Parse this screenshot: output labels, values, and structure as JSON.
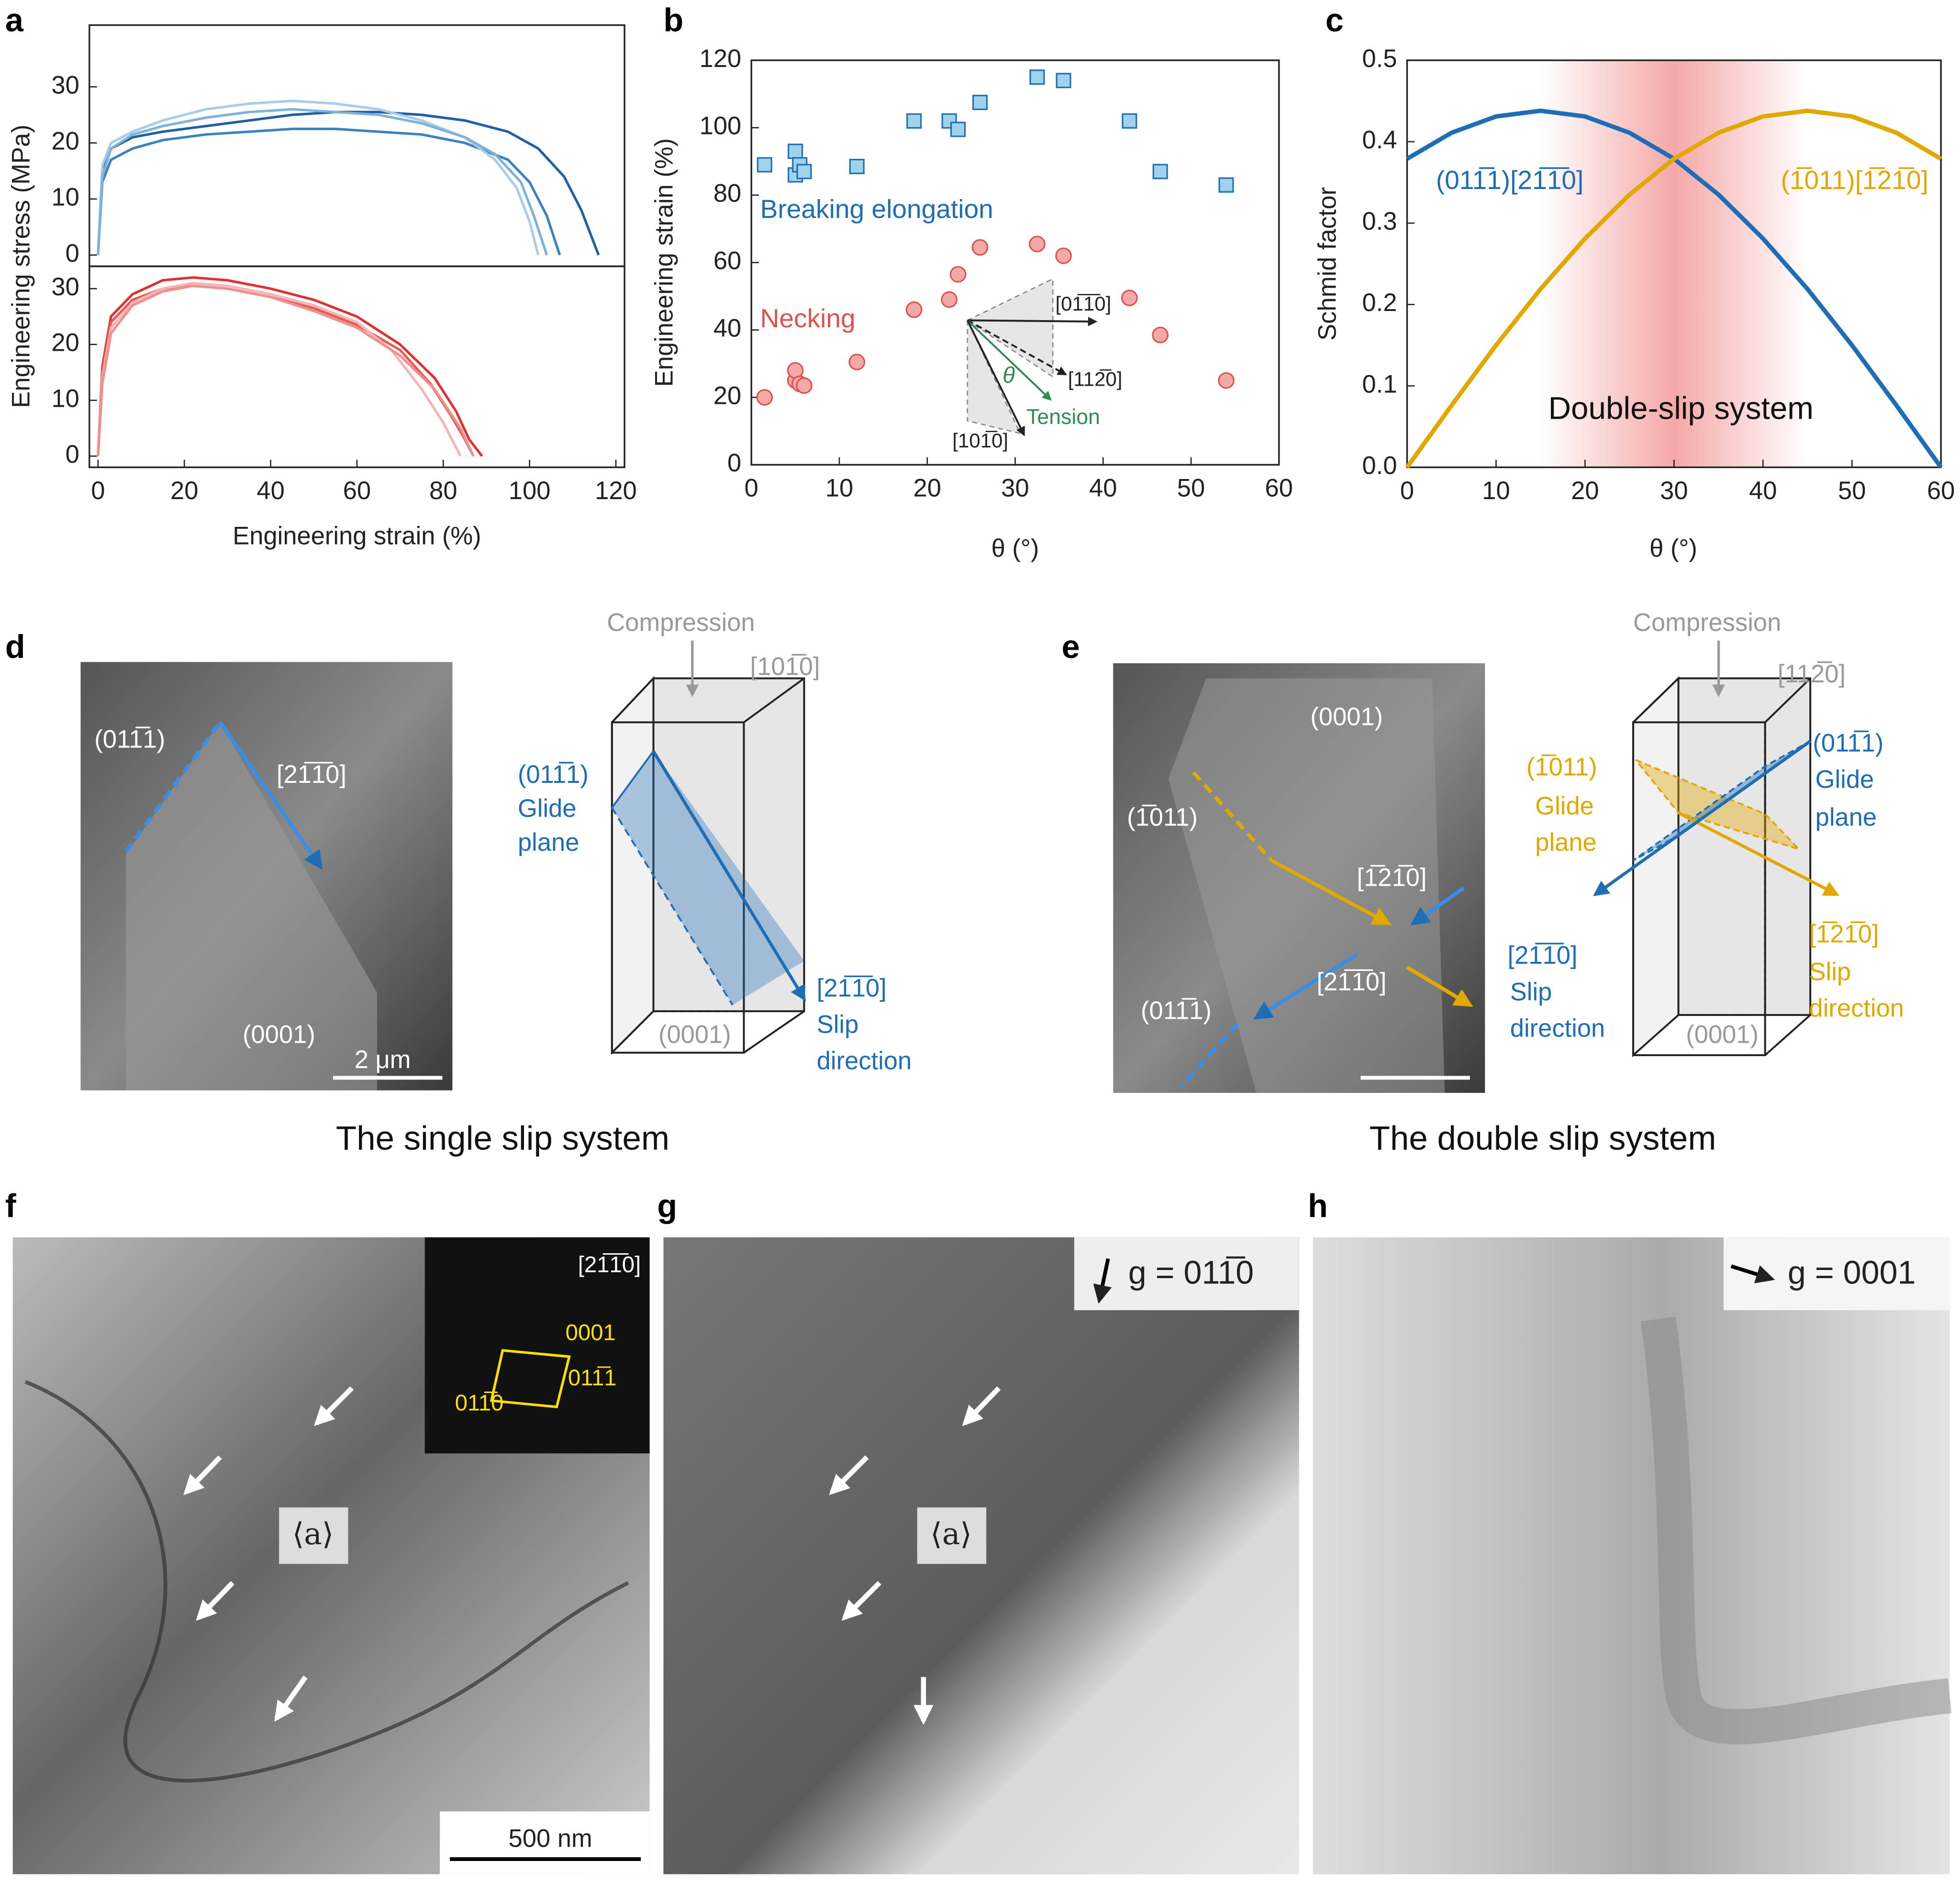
{
  "chart_data": [
    {
      "type": "line",
      "panel": "a",
      "ylabel": "Engineering stress (MPa)",
      "xlim": [
        -2,
        122
      ],
      "ylim": [
        -2,
        41
      ],
      "yticks": [
        0,
        10,
        20,
        30
      ],
      "series": [
        {
          "color": "#1f5fa5",
          "x": [
            0,
            1,
            3,
            8,
            15,
            25,
            35,
            45,
            55,
            65,
            75,
            85,
            95,
            102,
            108,
            112,
            116
          ],
          "values": [
            0,
            15,
            19,
            21,
            22,
            23,
            24,
            25,
            25.5,
            25.5,
            25,
            24,
            22,
            19,
            14,
            8,
            0
          ]
        },
        {
          "color": "#3d82c0",
          "x": [
            0,
            1,
            3,
            8,
            15,
            25,
            35,
            45,
            55,
            65,
            75,
            85,
            95,
            100,
            104,
            107
          ],
          "values": [
            0,
            13,
            17,
            19,
            20.5,
            21.5,
            22,
            22.5,
            22.5,
            22,
            21.5,
            20,
            17,
            13,
            7,
            0
          ]
        },
        {
          "color": "#a9cde8",
          "x": [
            0,
            1,
            3,
            8,
            15,
            25,
            35,
            45,
            55,
            65,
            75,
            85,
            92,
            97,
            100,
            102
          ],
          "values": [
            0,
            16,
            20,
            22,
            24,
            26,
            27,
            27.5,
            27,
            26,
            24,
            21,
            17,
            12,
            6,
            0
          ]
        },
        {
          "color": "#7fb2da",
          "x": [
            0,
            1,
            3,
            8,
            15,
            25,
            35,
            45,
            55,
            65,
            75,
            85,
            92,
            98,
            101,
            104
          ],
          "values": [
            0,
            14,
            19,
            21.5,
            23,
            24.5,
            25.5,
            26,
            25.5,
            25,
            23.5,
            21,
            18,
            13,
            7,
            0
          ]
        }
      ]
    },
    {
      "type": "line",
      "xlabel": "Engineering strain (%)",
      "xlim": [
        -2,
        122
      ],
      "ylim": [
        -2,
        34
      ],
      "xticks": [
        0,
        20,
        40,
        60,
        80,
        100,
        120
      ],
      "yticks": [
        0,
        10,
        20,
        30
      ],
      "series": [
        {
          "color": "#e0302f",
          "x": [
            0,
            1,
            3,
            8,
            15,
            22,
            30,
            40,
            50,
            60,
            70,
            78,
            83,
            86,
            89
          ],
          "values": [
            0,
            16,
            25,
            29,
            31.5,
            32,
            31.5,
            30,
            28,
            25,
            20,
            14,
            8,
            3,
            0
          ]
        },
        {
          "color": "#e65a5a",
          "x": [
            0,
            1,
            3,
            8,
            15,
            22,
            30,
            40,
            50,
            60,
            70,
            77,
            82,
            85,
            87
          ],
          "values": [
            0,
            15,
            24,
            28,
            30,
            30.5,
            30,
            28.5,
            26.5,
            23.5,
            19,
            13,
            7,
            3,
            0
          ]
        },
        {
          "color": "#f4b5b5",
          "x": [
            0,
            1,
            3,
            8,
            15,
            22,
            30,
            40,
            50,
            60,
            68,
            75,
            80,
            84
          ],
          "values": [
            0,
            14,
            23,
            27.5,
            30,
            31,
            30.5,
            29,
            27,
            24,
            19,
            12,
            6,
            0
          ]
        },
        {
          "color": "#ef8f8f",
          "x": [
            0,
            1,
            3,
            8,
            15,
            22,
            30,
            40,
            50,
            60,
            70,
            78,
            84,
            87
          ],
          "values": [
            0,
            13,
            22,
            27,
            29.5,
            30.5,
            30,
            28.5,
            26,
            23,
            18,
            12,
            5,
            0
          ]
        }
      ]
    },
    {
      "type": "scatter",
      "panel": "b",
      "ylabel": "Engineering strain (%)",
      "xlabel": "θ (°)",
      "xlim": [
        0,
        60
      ],
      "ylim": [
        0,
        120
      ],
      "xticks": [
        0,
        10,
        20,
        30,
        40,
        50,
        60
      ],
      "yticks": [
        0,
        20,
        40,
        60,
        80,
        100,
        120
      ],
      "series": [
        {
          "name": "Breaking elongation",
          "color": "#1f6db5",
          "fill": "#9fd3ec",
          "marker": "square",
          "x": [
            1.5,
            5,
            5,
            5.5,
            6,
            12,
            18.5,
            22.5,
            23.5,
            26,
            32.5,
            35.5,
            43,
            46.5,
            54
          ],
          "values": [
            89,
            93,
            86,
            89,
            87,
            88.5,
            102,
            102,
            99.5,
            107.5,
            115,
            114,
            102,
            87,
            83
          ]
        },
        {
          "name": "Necking",
          "color": "#d9534f",
          "fill": "#f4a9a8",
          "marker": "circle",
          "x": [
            1.5,
            5,
            5,
            5.5,
            6,
            12,
            18.5,
            22.5,
            23.5,
            26,
            32.5,
            35.5,
            43,
            46.5,
            54
          ],
          "values": [
            20,
            25,
            28,
            24,
            23.5,
            30.5,
            46,
            49,
            56.5,
            64.5,
            65.5,
            62,
            49.5,
            38.5,
            25
          ]
        }
      ],
      "inset_labels": [
        "[01̅1̅0]",
        "[112̅0]",
        "[101̅0]",
        "θ",
        "Tension"
      ]
    },
    {
      "type": "line",
      "panel": "c",
      "ylabel": "Schmid factor",
      "xlabel": "θ (°)",
      "xlim": [
        0,
        60
      ],
      "ylim": [
        0,
        0.5
      ],
      "xticks": [
        0,
        10,
        20,
        30,
        40,
        50,
        60
      ],
      "yticks": [
        {
          "value": 0,
          "label": "0.0"
        },
        0.1,
        0.2,
        0.3,
        0.4,
        0.5
      ],
      "x": [
        0,
        5,
        10,
        15,
        20,
        25,
        30,
        35,
        40,
        45,
        50,
        55,
        60
      ],
      "shaded_range": [
        15,
        45
      ],
      "shade_color": "#f28b8b",
      "annotation": "Double-slip system",
      "series": [
        {
          "name": "(011̅1)[21̅1̅0]",
          "color": "#1f6db5",
          "values": [
            0.379,
            0.411,
            0.431,
            0.438,
            0.431,
            0.411,
            0.379,
            0.335,
            0.281,
            0.219,
            0.15,
            0.076,
            0
          ]
        },
        {
          "name": "(1̅011)[1̅21̅0]",
          "color": "#e0a800",
          "values": [
            0,
            0.076,
            0.15,
            0.219,
            0.281,
            0.335,
            0.379,
            0.411,
            0.431,
            0.438,
            0.431,
            0.411,
            0.379
          ]
        }
      ]
    }
  ],
  "panels": {
    "d": {
      "letter": "d",
      "labels": [
        "(011̅1)",
        "[21̅1̅0]",
        "(0001)",
        "2 μm",
        "Compression",
        "[101̅0]",
        "(011̅1)",
        "Glide",
        "plane",
        "[21̅1̅0]",
        "Slip",
        "direction",
        "(0001)"
      ],
      "caption": "The single slip system"
    },
    "e": {
      "letter": "e",
      "labels": [
        "(0001)",
        "(1̅011)",
        "[1̅21̅0]",
        "[21̅1̅0]",
        "(011̅1)",
        "Compression",
        "[112̅0]",
        "(1̅011)",
        "Glide",
        "plane",
        "(011̅1)",
        "Glide",
        "plane",
        "[21̅1̅0]",
        "Slip",
        "direction",
        "[1̅21̅0]",
        "Slip",
        "direction",
        "(0001)"
      ],
      "caption": "The double slip system"
    },
    "f": {
      "letter": "f",
      "labels": [
        "[21̅1̅0]",
        "0001",
        "011̅1",
        "011̅0",
        "⟨a⟩",
        "500 nm"
      ]
    },
    "g": {
      "letter": "g",
      "labels": [
        "g = 011̅0",
        "⟨a⟩"
      ]
    },
    "h": {
      "letter": "h",
      "labels": [
        "g = 0001"
      ]
    }
  }
}
